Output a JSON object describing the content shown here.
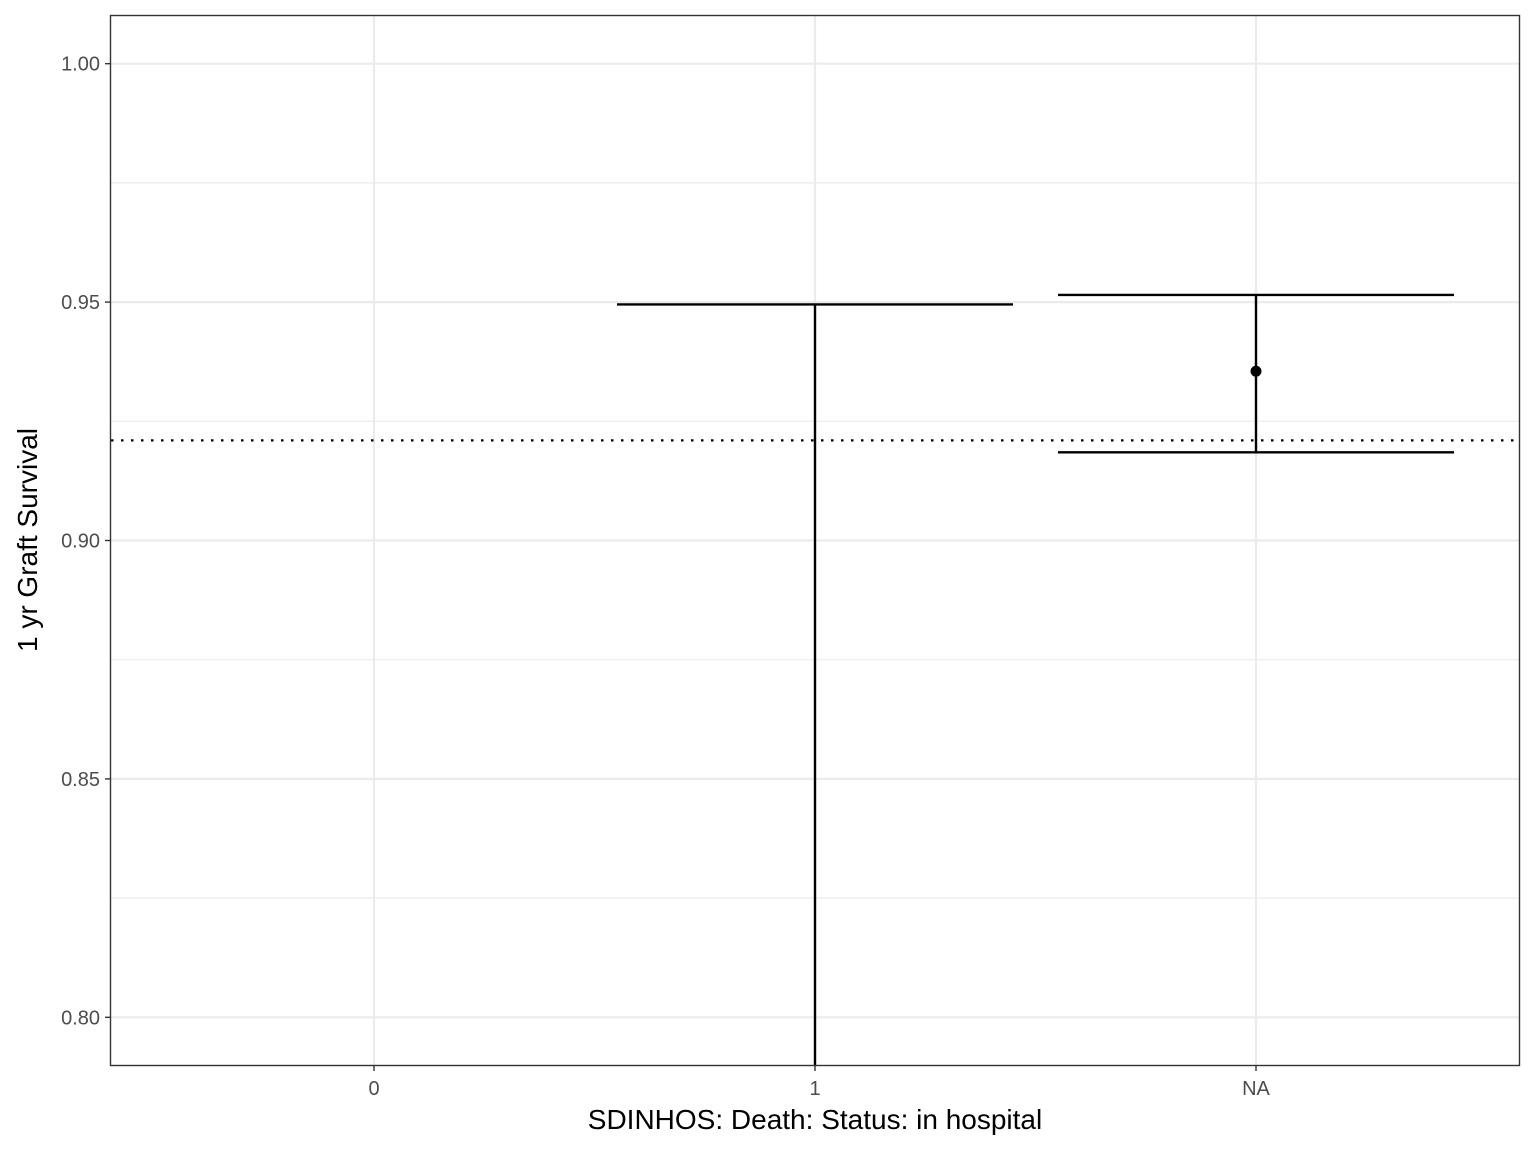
{
  "chart_data": {
    "type": "errorbar",
    "title": "",
    "xlabel": "SDINHOS: Death: Status: in hospital",
    "ylabel": "1 yr Graft Survival",
    "categories": [
      "0",
      "1",
      "NA"
    ],
    "ylim": [
      0.79,
      1.01
    ],
    "yticks": [
      "0.80",
      "0.85",
      "0.90",
      "0.95",
      "1.00"
    ],
    "points": [
      {
        "category": "1",
        "estimate": null,
        "lower": 0.79,
        "upper": 0.9495
      },
      {
        "category": "NA",
        "estimate": 0.9355,
        "lower": 0.9185,
        "upper": 0.9515
      }
    ],
    "reference_line": {
      "value": 0.921,
      "style": "dotted"
    },
    "grid": true,
    "colors": {
      "series": "#000000",
      "grid": "#ebebeb",
      "panel_border": "#333333"
    }
  }
}
